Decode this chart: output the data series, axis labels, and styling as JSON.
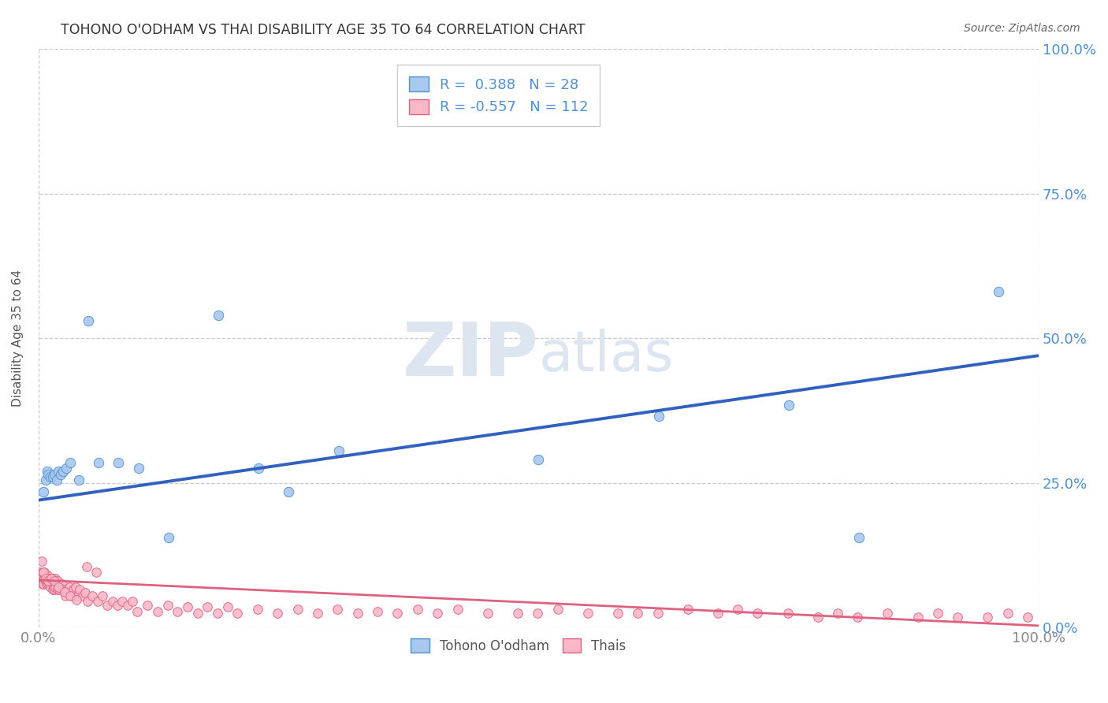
{
  "title": "TOHONO O'ODHAM VS THAI DISABILITY AGE 35 TO 64 CORRELATION CHART",
  "source": "Source: ZipAtlas.com",
  "ylabel": "Disability Age 35 to 64",
  "xlim": [
    0.0,
    1.0
  ],
  "ylim": [
    0.0,
    1.0
  ],
  "ytick_values": [
    0.0,
    0.25,
    0.5,
    0.75,
    1.0
  ],
  "grid_color": "#c8c8c8",
  "background_color": "#ffffff",
  "blue_label": "Tohono O'odham",
  "pink_label": "Thais",
  "blue_R": 0.388,
  "blue_N": 28,
  "pink_R": -0.557,
  "pink_N": 112,
  "blue_color": "#a8c8f0",
  "pink_color": "#f8b8c8",
  "blue_edge_color": "#5090d0",
  "pink_edge_color": "#e06080",
  "blue_line_color": "#3060c0",
  "pink_line_color": "#e06080",
  "blue_scatter_x": [
    0.005,
    0.007,
    0.009,
    0.01,
    0.012,
    0.014,
    0.016,
    0.018,
    0.02,
    0.022,
    0.025,
    0.028,
    0.032,
    0.04,
    0.05,
    0.06,
    0.08,
    0.1,
    0.13,
    0.18,
    0.22,
    0.25,
    0.3,
    0.5,
    0.62,
    0.75,
    0.82,
    0.96
  ],
  "blue_scatter_y": [
    0.235,
    0.255,
    0.27,
    0.265,
    0.26,
    0.26,
    0.265,
    0.255,
    0.27,
    0.265,
    0.27,
    0.275,
    0.285,
    0.255,
    0.53,
    0.285,
    0.285,
    0.275,
    0.155,
    0.54,
    0.275,
    0.235,
    0.305,
    0.29,
    0.365,
    0.385,
    0.155,
    0.58
  ],
  "pink_scatter_x": [
    0.001,
    0.002,
    0.003,
    0.004,
    0.004,
    0.005,
    0.005,
    0.006,
    0.006,
    0.007,
    0.007,
    0.008,
    0.008,
    0.009,
    0.009,
    0.01,
    0.01,
    0.011,
    0.011,
    0.012,
    0.012,
    0.013,
    0.014,
    0.014,
    0.015,
    0.015,
    0.016,
    0.017,
    0.017,
    0.019,
    0.019,
    0.021,
    0.022,
    0.024,
    0.025,
    0.027,
    0.029,
    0.031,
    0.033,
    0.035,
    0.037,
    0.039,
    0.041,
    0.044,
    0.047,
    0.049,
    0.054,
    0.059,
    0.064,
    0.069,
    0.074,
    0.079,
    0.084,
    0.089,
    0.094,
    0.099,
    0.109,
    0.119,
    0.129,
    0.139,
    0.149,
    0.159,
    0.169,
    0.179,
    0.189,
    0.199,
    0.219,
    0.239,
    0.259,
    0.279,
    0.299,
    0.319,
    0.339,
    0.359,
    0.379,
    0.399,
    0.419,
    0.449,
    0.479,
    0.499,
    0.519,
    0.549,
    0.579,
    0.599,
    0.619,
    0.649,
    0.679,
    0.699,
    0.719,
    0.749,
    0.779,
    0.799,
    0.819,
    0.849,
    0.879,
    0.899,
    0.919,
    0.949,
    0.969,
    0.989,
    0.003,
    0.005,
    0.007,
    0.01,
    0.013,
    0.016,
    0.02,
    0.026,
    0.032,
    0.038,
    0.048,
    0.058
  ],
  "pink_scatter_y": [
    0.095,
    0.09,
    0.085,
    0.095,
    0.075,
    0.09,
    0.075,
    0.085,
    0.095,
    0.08,
    0.09,
    0.085,
    0.075,
    0.08,
    0.09,
    0.08,
    0.075,
    0.085,
    0.075,
    0.08,
    0.07,
    0.08,
    0.065,
    0.085,
    0.07,
    0.08,
    0.065,
    0.07,
    0.085,
    0.065,
    0.08,
    0.065,
    0.07,
    0.075,
    0.065,
    0.055,
    0.065,
    0.07,
    0.055,
    0.065,
    0.07,
    0.055,
    0.065,
    0.055,
    0.06,
    0.045,
    0.055,
    0.045,
    0.055,
    0.038,
    0.045,
    0.038,
    0.045,
    0.038,
    0.045,
    0.028,
    0.038,
    0.028,
    0.038,
    0.028,
    0.035,
    0.025,
    0.035,
    0.025,
    0.035,
    0.025,
    0.032,
    0.025,
    0.032,
    0.025,
    0.032,
    0.025,
    0.028,
    0.025,
    0.032,
    0.025,
    0.032,
    0.025,
    0.025,
    0.025,
    0.032,
    0.025,
    0.025,
    0.025,
    0.025,
    0.032,
    0.025,
    0.032,
    0.025,
    0.025,
    0.018,
    0.025,
    0.018,
    0.025,
    0.018,
    0.025,
    0.018,
    0.018,
    0.025,
    0.018,
    0.115,
    0.095,
    0.085,
    0.08,
    0.085,
    0.08,
    0.07,
    0.062,
    0.055,
    0.048,
    0.105,
    0.095
  ],
  "blue_trend_x": [
    0.0,
    1.0
  ],
  "blue_trend_y": [
    0.22,
    0.47
  ],
  "pink_trend_x": [
    0.0,
    1.0
  ],
  "pink_trend_y": [
    0.082,
    0.003
  ],
  "watermark_zip": "ZIP",
  "watermark_atlas": "atlas",
  "watermark_color": "#dde5f0",
  "watermark_fontsize": 68
}
